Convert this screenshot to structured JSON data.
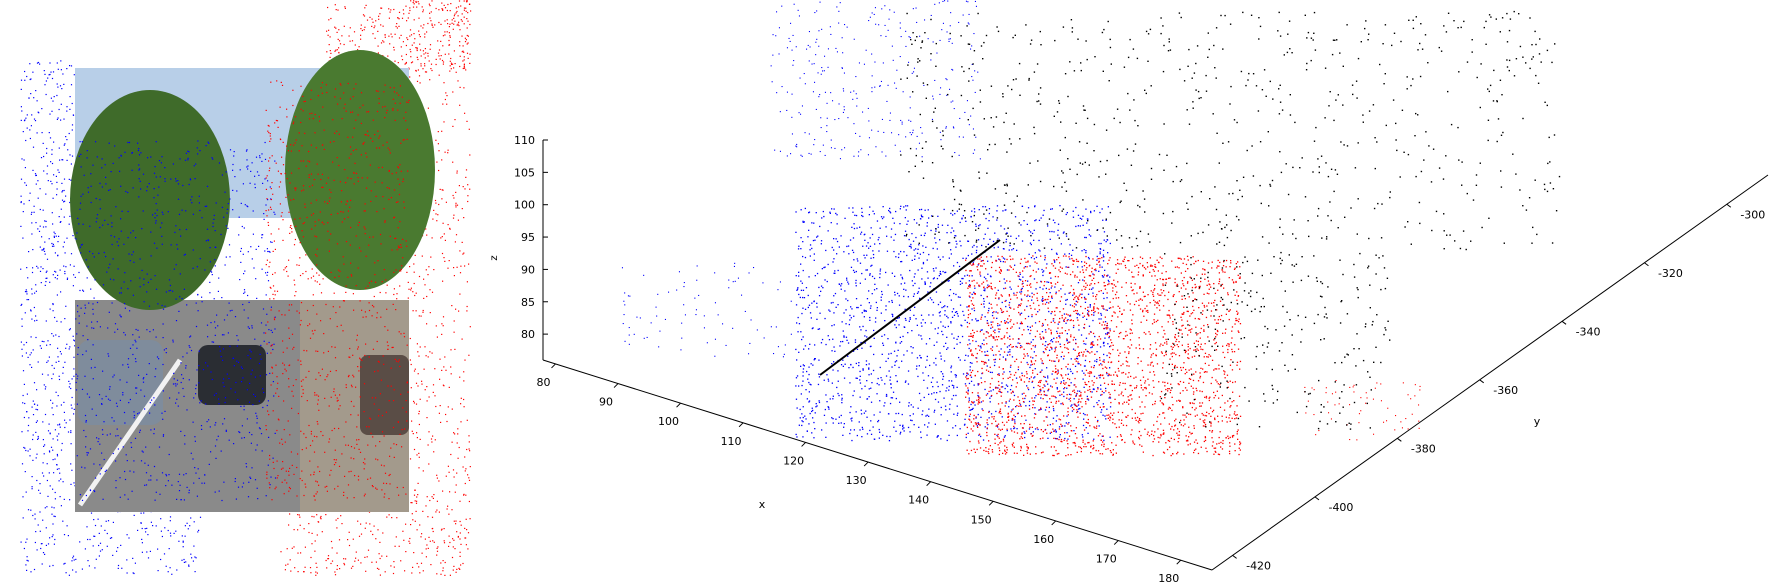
{
  "colors": {
    "left_points": "#0000ff",
    "right_points": "#ff0000",
    "scene_points": "#000000",
    "axis": "#000000"
  },
  "photo": {
    "description_icon": "street-photo-icon"
  },
  "chart_data": [
    {
      "type": "scatter",
      "title": "",
      "role": "image overlay",
      "series": [],
      "xlabel": "",
      "ylabel": ""
    },
    {
      "type": "scatter",
      "title": "",
      "projection": "3d",
      "xlabel": "x",
      "ylabel": "y",
      "zlabel": "z",
      "xlim": [
        78,
        185
      ],
      "ylim": [
        -425,
        -290
      ],
      "zlim": [
        76,
        110
      ],
      "xticks": [
        80,
        90,
        100,
        110,
        120,
        130,
        140,
        150,
        160,
        170,
        180
      ],
      "yticks": [
        -420,
        -400,
        -380,
        -360,
        -340,
        -320,
        -300
      ],
      "zticks": [
        80,
        85,
        90,
        95,
        100,
        105,
        110
      ],
      "grid": false,
      "legend": "none",
      "series": [
        {
          "color": "#0000ff"
        },
        {
          "color": "#ff0000"
        },
        {
          "color": "#000000"
        }
      ]
    }
  ]
}
